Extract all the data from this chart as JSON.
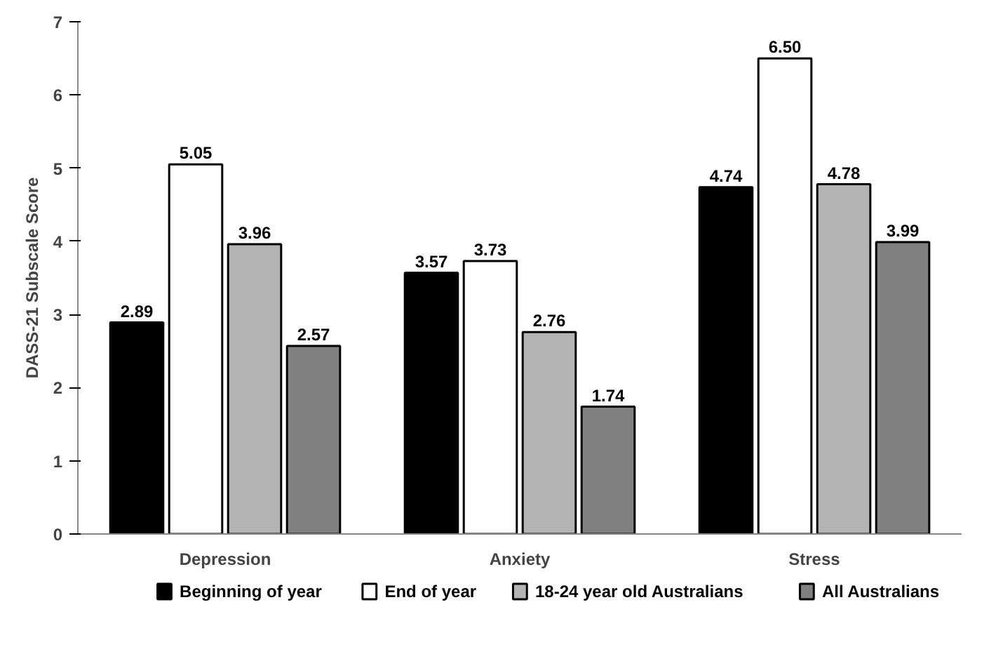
{
  "chart_data": {
    "type": "bar",
    "ylabel": "DASS-21 Subscale Score",
    "categories": [
      "Depression",
      "Anxiety",
      "Stress"
    ],
    "series": [
      {
        "name": "Beginning of year",
        "color": "#000000",
        "values": [
          2.89,
          3.57,
          4.74
        ],
        "value_labels": [
          "2.89",
          "3.57",
          "4.74"
        ]
      },
      {
        "name": "End of year",
        "color": "#ffffff",
        "values": [
          5.05,
          3.73,
          6.5
        ],
        "value_labels": [
          "5.05",
          "3.73",
          "6.50"
        ]
      },
      {
        "name": "18-24 year old Australians",
        "color": "#b4b4b4",
        "values": [
          3.96,
          2.76,
          4.78
        ],
        "value_labels": [
          "3.96",
          "2.76",
          "4.78"
        ]
      },
      {
        "name": "All Australians",
        "color": "#808080",
        "values": [
          2.57,
          1.74,
          3.99
        ],
        "value_labels": [
          "2.57",
          "1.74",
          "3.99"
        ]
      }
    ],
    "ylim": [
      0,
      7
    ],
    "yticks": [
      0,
      1,
      2,
      3,
      4,
      5,
      6,
      7
    ],
    "grid": false,
    "legend": "bottom"
  }
}
